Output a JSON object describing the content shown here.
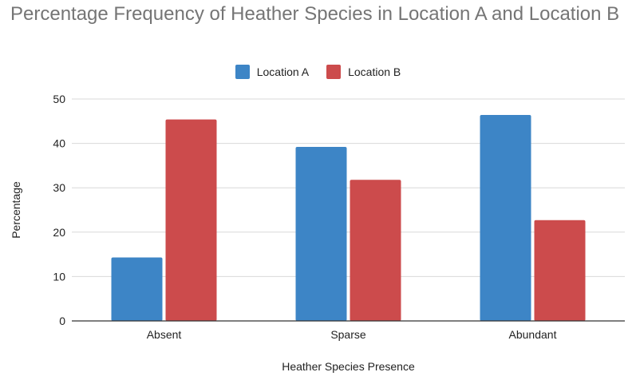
{
  "chart_data": {
    "type": "bar",
    "title": "Percentage Frequency of Heather Species in Location A and Location B",
    "xlabel": "Heather Species Presence",
    "ylabel": "Percentage",
    "categories": [
      "Absent",
      "Sparse",
      "Abundant"
    ],
    "series": [
      {
        "name": "Location A",
        "color": "#3d85c6",
        "values": [
          14.3,
          39.2,
          46.4
        ]
      },
      {
        "name": "Location B",
        "color": "#cc4b4c",
        "values": [
          45.4,
          31.8,
          22.7
        ]
      }
    ],
    "ylim": [
      0,
      50
    ],
    "yticks": [
      0,
      10,
      20,
      30,
      40,
      50
    ],
    "grid": true,
    "legend_position": "top-center"
  }
}
